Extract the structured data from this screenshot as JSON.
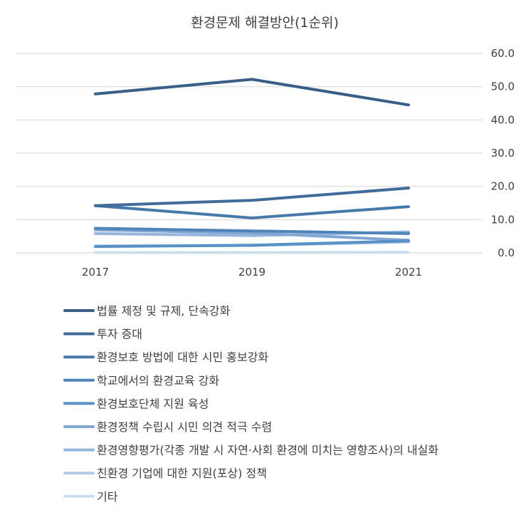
{
  "chart_data": {
    "type": "line",
    "title": "환경문제 해결방안(1순위)",
    "xlabel": "",
    "ylabel": "",
    "categories": [
      "2017",
      "2019",
      "2021"
    ],
    "ylim": [
      0,
      60
    ],
    "yticks": [
      "0.0",
      "10.0",
      "20.0",
      "30.0",
      "40.0",
      "50.0",
      "60.0"
    ],
    "y_axis_side": "right",
    "grid": true,
    "legend_position": "bottom",
    "series": [
      {
        "name": "법률 제정 및 규제, 단속강화",
        "values": [
          47.8,
          52.2,
          44.5
        ],
        "color": "#3a5f87"
      },
      {
        "name": "투자 증대",
        "values": [
          14.2,
          15.8,
          19.5
        ],
        "color": "#416b99"
      },
      {
        "name": "환경보호 방법에 대한 시민 홍보강화",
        "values": [
          14.2,
          10.5,
          13.9
        ],
        "color": "#4778aa"
      },
      {
        "name": "학교에서의 환경교육 강화",
        "values": [
          7.4,
          6.6,
          5.8
        ],
        "color": "#4f84b9"
      },
      {
        "name": "환경보호단체 지원 육성",
        "values": [
          1.9,
          2.3,
          3.6
        ],
        "color": "#5791c7"
      },
      {
        "name": "환경정책 수립시 시민 의견 적극 수렴",
        "values": [
          6.9,
          6.0,
          3.8
        ],
        "color": "#81a6d4"
      },
      {
        "name": "환경영향평가(각종 개발 시 자연·사회 환경에 미치는 영향조사)의 내실화",
        "values": [
          5.8,
          5.2,
          6.3
        ],
        "color": "#95b5dc"
      },
      {
        "name": "친환경 기업에 대한 지원(포상) 정책",
        "values": [
          2.1,
          2.2,
          3.3
        ],
        "color": "#b3cae6"
      },
      {
        "name": "기타",
        "values": [
          0.1,
          0.1,
          0.2
        ],
        "color": "#cedded"
      }
    ]
  }
}
